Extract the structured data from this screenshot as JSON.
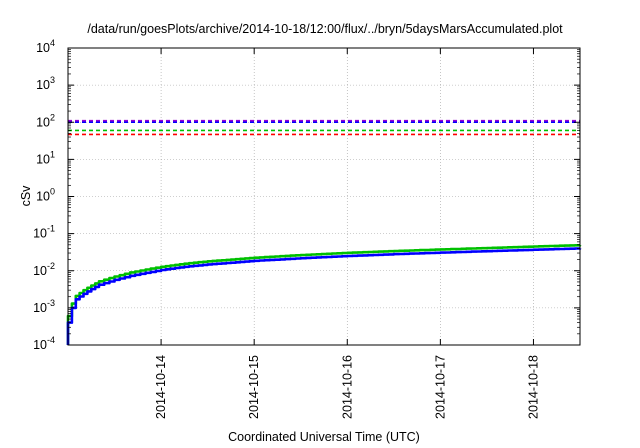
{
  "chart_data": {
    "type": "line",
    "title": "/data/run/goesPlots/archive/2014-10-18/12:00/flux/../bryn/5daysMarsAccumulated.plot",
    "xlabel": "Coordinated Universal Time (UTC)",
    "ylabel": "cSv",
    "x_type": "date",
    "xlim": [
      "2014-10-13T00:00",
      "2014-10-18T12:00"
    ],
    "x_tick_labels": [
      "2014-10-14",
      "2014-10-15",
      "2014-10-16",
      "2014-10-17",
      "2014-10-18"
    ],
    "y_scale": "log",
    "ylim": [
      0.0001,
      10000
    ],
    "y_tick_labels": [
      {
        "base": "10",
        "exp": "-4"
      },
      {
        "base": "10",
        "exp": "-3"
      },
      {
        "base": "10",
        "exp": "-2"
      },
      {
        "base": "10",
        "exp": "-1"
      },
      {
        "base": "10",
        "exp": "0"
      },
      {
        "base": "10",
        "exp": "1"
      },
      {
        "base": "10",
        "exp": "2"
      },
      {
        "base": "10",
        "exp": "3"
      },
      {
        "base": "10",
        "exp": "4"
      }
    ],
    "grid": true,
    "reference_lines": [
      {
        "value": 110,
        "color": "#9400d3",
        "style": "dashed"
      },
      {
        "value": 100,
        "color": "#0000ff",
        "style": "dashed"
      },
      {
        "value": 60,
        "color": "#00c000",
        "style": "dashed"
      },
      {
        "value": 47,
        "color": "#ff0000",
        "style": "dashed"
      }
    ],
    "series": [
      {
        "color": "#00c000",
        "x": [
          "2014-10-13T00:00",
          "2014-10-13T01:00",
          "2014-10-13T02:00",
          "2014-10-13T04:00",
          "2014-10-13T06:00",
          "2014-10-13T08:00",
          "2014-10-13T12:00",
          "2014-10-13T16:00",
          "2014-10-13T20:00",
          "2014-10-14T00:00",
          "2014-10-14T06:00",
          "2014-10-14T12:00",
          "2014-10-14T18:00",
          "2014-10-15T00:00",
          "2014-10-15T12:00",
          "2014-10-16T00:00",
          "2014-10-16T12:00",
          "2014-10-17T00:00",
          "2014-10-17T12:00",
          "2014-10-18T00:00",
          "2014-10-18T12:00"
        ],
        "y": [
          0.0006,
          0.0013,
          0.0021,
          0.003,
          0.004,
          0.0052,
          0.007,
          0.009,
          0.0108,
          0.0128,
          0.0155,
          0.018,
          0.02,
          0.0225,
          0.0265,
          0.0305,
          0.034,
          0.0375,
          0.041,
          0.045,
          0.049
        ]
      },
      {
        "color": "#0000ff",
        "x": [
          "2014-10-13T00:00",
          "2014-10-13T01:00",
          "2014-10-13T02:00",
          "2014-10-13T04:00",
          "2014-10-13T06:00",
          "2014-10-13T08:00",
          "2014-10-13T12:00",
          "2014-10-13T16:00",
          "2014-10-13T20:00",
          "2014-10-14T00:00",
          "2014-10-14T06:00",
          "2014-10-14T12:00",
          "2014-10-14T18:00",
          "2014-10-15T00:00",
          "2014-10-15T12:00",
          "2014-10-16T00:00",
          "2014-10-16T12:00",
          "2014-10-17T00:00",
          "2014-10-17T12:00",
          "2014-10-18T00:00",
          "2014-10-18T12:00"
        ],
        "y": [
          0.0004,
          0.001,
          0.0017,
          0.0024,
          0.0032,
          0.0042,
          0.0057,
          0.0073,
          0.0088,
          0.0105,
          0.0128,
          0.0148,
          0.0165,
          0.0185,
          0.0218,
          0.025,
          0.028,
          0.0308,
          0.0337,
          0.0368,
          0.04
        ]
      }
    ]
  }
}
